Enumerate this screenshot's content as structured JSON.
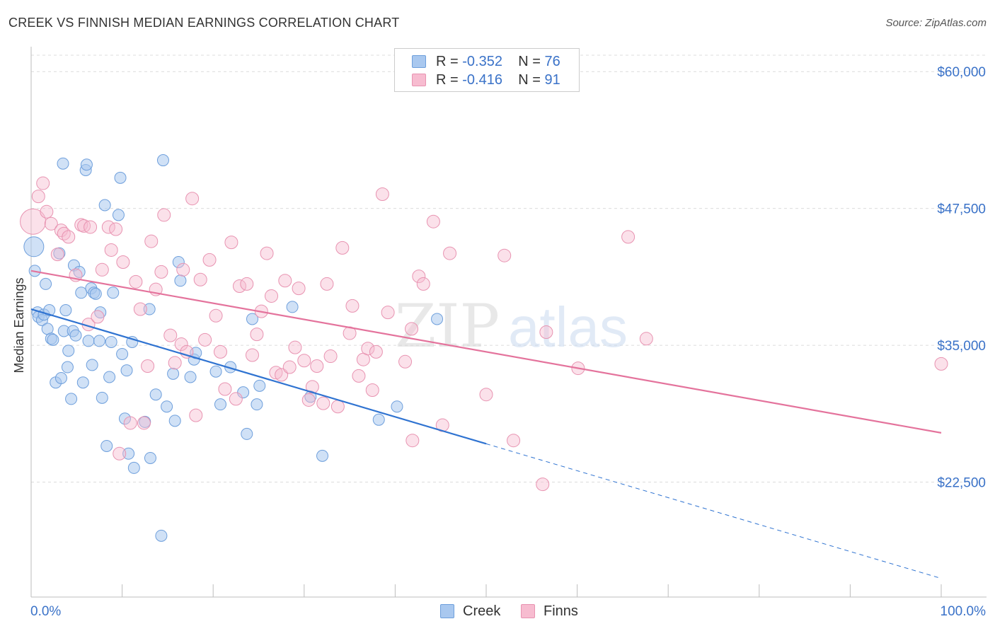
{
  "title": "CREEK VS FINNISH MEDIAN EARNINGS CORRELATION CHART",
  "source": "Source: ZipAtlas.com",
  "watermark": {
    "zip": "ZIP",
    "atlas": "atlas"
  },
  "colors": {
    "creek_fill": "#a9c8ef",
    "creek_stroke": "#6e9fdc",
    "creek_line": "#2f73d1",
    "finns_fill": "#f7bcd0",
    "finns_stroke": "#e893b1",
    "finns_line": "#e4739c",
    "axis_label": "#3a72c8",
    "grid": "#dcdcdc"
  },
  "legend": {
    "rows": [
      {
        "r_label": "R = ",
        "r_value": "-0.352",
        "n_label": "N = ",
        "n_value": "76"
      },
      {
        "r_label": "R = ",
        "r_value": "-0.416",
        "n_label": "N = ",
        "n_value": "91"
      }
    ],
    "bottom": [
      "Creek",
      "Finns"
    ]
  },
  "chart_data": {
    "type": "scatter",
    "title": "CREEK VS FINNISH MEDIAN EARNINGS CORRELATION CHART",
    "xlabel": "",
    "ylabel": "Median Earnings",
    "xlim": [
      0,
      100
    ],
    "ylim": [
      12000,
      61500
    ],
    "x_tick_labels": [
      "0.0%",
      "100.0%"
    ],
    "y_ticks": [
      22500,
      35000,
      47500,
      60000
    ],
    "y_tick_labels": [
      "$22,500",
      "$35,000",
      "$47,500",
      "$60,000"
    ],
    "legend_position": "top-center",
    "series": [
      {
        "name": "Creek",
        "R": -0.352,
        "N": 76,
        "trend": {
          "x_solid": [
            0,
            50
          ],
          "y_solid": [
            38300,
            26000
          ],
          "x_dashed": [
            50,
            100
          ],
          "y_dashed": [
            26000,
            13700
          ]
        },
        "points": [
          [
            0.3,
            44000,
            14
          ],
          [
            0.4,
            41800,
            8
          ],
          [
            0.7,
            38000,
            8
          ],
          [
            0.8,
            37600,
            8
          ],
          [
            1.2,
            37300,
            8
          ],
          [
            1.4,
            37800,
            8
          ],
          [
            1.6,
            40600,
            8
          ],
          [
            1.8,
            36500,
            8
          ],
          [
            2.0,
            38200,
            8
          ],
          [
            2.2,
            35600,
            8
          ],
          [
            2.4,
            35500,
            8
          ],
          [
            2.7,
            31600,
            8
          ],
          [
            3.1,
            43400,
            8
          ],
          [
            3.3,
            32000,
            8
          ],
          [
            3.5,
            51600,
            8
          ],
          [
            3.6,
            36300,
            8
          ],
          [
            3.8,
            38200,
            8
          ],
          [
            4.0,
            33000,
            8
          ],
          [
            4.1,
            34500,
            8
          ],
          [
            4.4,
            30100,
            8
          ],
          [
            4.6,
            36300,
            8
          ],
          [
            4.7,
            42300,
            8
          ],
          [
            4.9,
            35900,
            8
          ],
          [
            5.3,
            41700,
            8
          ],
          [
            5.5,
            39800,
            8
          ],
          [
            5.7,
            31600,
            8
          ],
          [
            6.0,
            51000,
            8
          ],
          [
            6.1,
            51500,
            8
          ],
          [
            6.3,
            35400,
            8
          ],
          [
            6.6,
            40200,
            8
          ],
          [
            6.7,
            33200,
            8
          ],
          [
            6.9,
            39800,
            8
          ],
          [
            7.1,
            39700,
            8
          ],
          [
            7.5,
            35400,
            8
          ],
          [
            7.6,
            38000,
            8
          ],
          [
            7.8,
            30200,
            8
          ],
          [
            8.1,
            47800,
            8
          ],
          [
            8.3,
            25800,
            8
          ],
          [
            8.6,
            32100,
            8
          ],
          [
            8.8,
            35300,
            8
          ],
          [
            9.0,
            39800,
            8
          ],
          [
            9.6,
            46900,
            8
          ],
          [
            9.8,
            50300,
            8
          ],
          [
            10.0,
            34200,
            8
          ],
          [
            10.3,
            28300,
            8
          ],
          [
            10.5,
            32700,
            8
          ],
          [
            10.7,
            25100,
            8
          ],
          [
            11.1,
            35300,
            8
          ],
          [
            11.3,
            23800,
            8
          ],
          [
            12.5,
            28000,
            8
          ],
          [
            13.0,
            38300,
            8
          ],
          [
            13.1,
            24700,
            8
          ],
          [
            13.7,
            30500,
            8
          ],
          [
            14.3,
            17600,
            8
          ],
          [
            14.5,
            51900,
            8
          ],
          [
            14.9,
            29400,
            8
          ],
          [
            15.6,
            32400,
            8
          ],
          [
            15.8,
            28100,
            8
          ],
          [
            16.2,
            42600,
            8
          ],
          [
            16.4,
            40900,
            8
          ],
          [
            17.5,
            32100,
            8
          ],
          [
            17.9,
            33700,
            8
          ],
          [
            18.1,
            34300,
            8
          ],
          [
            20.3,
            32600,
            8
          ],
          [
            20.8,
            29600,
            8
          ],
          [
            21.9,
            33000,
            8
          ],
          [
            23.3,
            30700,
            8
          ],
          [
            23.7,
            26900,
            8
          ],
          [
            24.3,
            37400,
            8
          ],
          [
            24.8,
            29600,
            8
          ],
          [
            25.1,
            31300,
            8
          ],
          [
            28.7,
            38500,
            8
          ],
          [
            30.7,
            30300,
            8
          ],
          [
            32.0,
            24900,
            8
          ],
          [
            38.2,
            28200,
            8
          ],
          [
            40.2,
            29400,
            8
          ],
          [
            44.6,
            37400,
            8
          ]
        ]
      },
      {
        "name": "Finns",
        "R": -0.416,
        "N": 91,
        "trend": {
          "x_solid": [
            0,
            100
          ],
          "y_solid": [
            41800,
            27000
          ]
        },
        "points": [
          [
            0.2,
            46300,
            18
          ],
          [
            0.8,
            48600,
            9
          ],
          [
            1.3,
            49800,
            9
          ],
          [
            1.7,
            47200,
            9
          ],
          [
            2.2,
            46100,
            9
          ],
          [
            2.9,
            43300,
            9
          ],
          [
            3.3,
            45500,
            9
          ],
          [
            3.6,
            45200,
            9
          ],
          [
            4.1,
            44900,
            9
          ],
          [
            4.9,
            41400,
            9
          ],
          [
            5.5,
            46000,
            9
          ],
          [
            5.8,
            45900,
            9
          ],
          [
            6.3,
            36900,
            9
          ],
          [
            6.5,
            45800,
            9
          ],
          [
            7.3,
            37600,
            9
          ],
          [
            7.8,
            41900,
            9
          ],
          [
            8.5,
            45800,
            9
          ],
          [
            8.8,
            43700,
            9
          ],
          [
            9.3,
            45600,
            9
          ],
          [
            9.7,
            25100,
            9
          ],
          [
            10.1,
            42600,
            9
          ],
          [
            10.9,
            27900,
            9
          ],
          [
            11.5,
            40800,
            9
          ],
          [
            12.0,
            38300,
            9
          ],
          [
            12.4,
            27900,
            9
          ],
          [
            12.8,
            33100,
            9
          ],
          [
            13.2,
            44500,
            9
          ],
          [
            13.7,
            40100,
            9
          ],
          [
            14.3,
            41700,
            9
          ],
          [
            14.6,
            46900,
            9
          ],
          [
            15.3,
            35900,
            9
          ],
          [
            15.8,
            33400,
            9
          ],
          [
            16.5,
            35100,
            9
          ],
          [
            16.7,
            41900,
            9
          ],
          [
            17.1,
            34400,
            9
          ],
          [
            17.7,
            48400,
            9
          ],
          [
            18.1,
            28600,
            9
          ],
          [
            18.6,
            41000,
            9
          ],
          [
            19.1,
            35500,
            9
          ],
          [
            19.6,
            42800,
            9
          ],
          [
            20.3,
            37700,
            9
          ],
          [
            20.8,
            34400,
            9
          ],
          [
            21.3,
            31000,
            9
          ],
          [
            22.0,
            44400,
            9
          ],
          [
            22.5,
            30100,
            9
          ],
          [
            22.9,
            40400,
            9
          ],
          [
            23.7,
            40600,
            9
          ],
          [
            24.3,
            34100,
            9
          ],
          [
            24.8,
            36000,
            9
          ],
          [
            25.3,
            38100,
            9
          ],
          [
            25.9,
            43400,
            9
          ],
          [
            26.4,
            39500,
            9
          ],
          [
            26.9,
            32500,
            9
          ],
          [
            27.5,
            32300,
            9
          ],
          [
            27.9,
            40900,
            9
          ],
          [
            28.4,
            33000,
            9
          ],
          [
            29.0,
            34800,
            9
          ],
          [
            29.4,
            40200,
            9
          ],
          [
            30.0,
            33600,
            9
          ],
          [
            30.5,
            30000,
            9
          ],
          [
            30.9,
            31200,
            9
          ],
          [
            31.4,
            33100,
            9
          ],
          [
            32.1,
            29700,
            9
          ],
          [
            32.5,
            40600,
            9
          ],
          [
            32.9,
            34000,
            9
          ],
          [
            33.7,
            29400,
            9
          ],
          [
            34.2,
            43900,
            9
          ],
          [
            35.0,
            36100,
            9
          ],
          [
            35.3,
            38600,
            9
          ],
          [
            36.0,
            32200,
            9
          ],
          [
            36.5,
            33700,
            9
          ],
          [
            37.0,
            34700,
            9
          ],
          [
            37.5,
            30900,
            9
          ],
          [
            37.9,
            34400,
            9
          ],
          [
            38.6,
            48800,
            9
          ],
          [
            39.2,
            38000,
            9
          ],
          [
            41.1,
            33500,
            9
          ],
          [
            41.8,
            36500,
            9
          ],
          [
            41.9,
            26300,
            9
          ],
          [
            42.6,
            41300,
            9
          ],
          [
            43.1,
            40600,
            9
          ],
          [
            44.2,
            46300,
            9
          ],
          [
            45.2,
            27700,
            9
          ],
          [
            46.0,
            43400,
            9
          ],
          [
            50.0,
            30500,
            9
          ],
          [
            52.0,
            43200,
            9
          ],
          [
            53.0,
            26300,
            9
          ],
          [
            56.2,
            22300,
            9
          ],
          [
            56.6,
            36200,
            9
          ],
          [
            60.1,
            32900,
            9
          ],
          [
            65.6,
            44900,
            9
          ],
          [
            67.6,
            35600,
            9
          ],
          [
            100.0,
            33300,
            9
          ]
        ]
      }
    ]
  }
}
